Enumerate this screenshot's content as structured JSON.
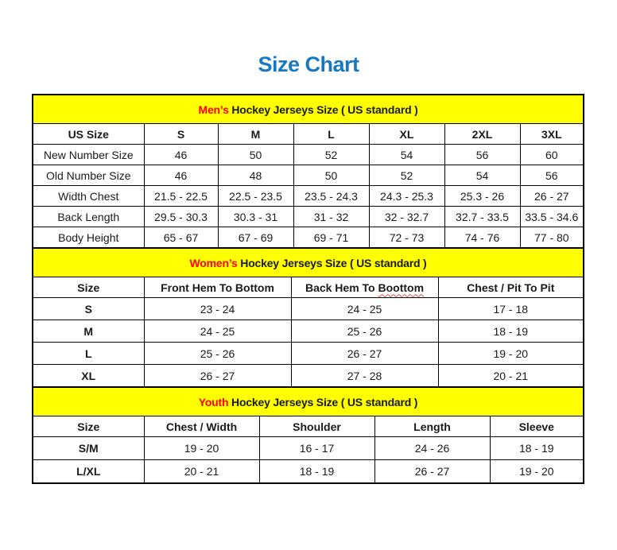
{
  "page": {
    "title": "Size Chart"
  },
  "colors": {
    "title_blue": "#1778c4",
    "section_header_bg": "#ffff00",
    "section_accent_red": "#ff0000",
    "border_black": "#000000"
  },
  "tables": [
    {
      "id": "mens",
      "section_title": {
        "highlight": "Men’s",
        "rest": " Hockey Jerseys Size ( US standard )"
      },
      "columns": [
        "US Size",
        "S",
        "M",
        "L",
        "XL",
        "2XL",
        "3XL"
      ],
      "rows": [
        [
          "New Number Size",
          "46",
          "50",
          "52",
          "54",
          "56",
          "60"
        ],
        [
          "Old Number Size",
          "46",
          "48",
          "50",
          "52",
          "54",
          "56"
        ],
        [
          "Width Chest",
          "21.5 - 22.5",
          "22.5 - 23.5",
          "23.5 - 24.3",
          "24.3 - 25.3",
          "25.3 - 26",
          "26 - 27"
        ],
        [
          "Back Length",
          "29.5 - 30.3",
          "30.3 - 31",
          "31 - 32",
          "32 - 32.7",
          "32.7 - 33.5",
          "33.5 - 34.6"
        ],
        [
          "Body Height",
          "65 - 67",
          "67 - 69",
          "69 - 71",
          "72 - 73",
          "74 - 76",
          "77 - 80"
        ]
      ]
    },
    {
      "id": "womens",
      "section_title": {
        "highlight": "Women’s",
        "rest": " Hockey Jerseys Size ( US standard )"
      },
      "columns": [
        "Size",
        "Front Hem To Bottom",
        "Back Hem To Boottom",
        "Chest / Pit To Pit"
      ],
      "misspell": {
        "col": 2,
        "word": "Boottom"
      },
      "rows": [
        [
          "S",
          "23 - 24",
          "24 - 25",
          "17 - 18"
        ],
        [
          "M",
          "24 - 25",
          "25 - 26",
          "18 - 19"
        ],
        [
          "L",
          "25 - 26",
          "26 - 27",
          "19 - 20"
        ],
        [
          "XL",
          "26 - 27",
          "27 - 28",
          "20 - 21"
        ]
      ]
    },
    {
      "id": "youth",
      "section_title": {
        "highlight": "Youth",
        "rest": " Hockey Jerseys Size ( US standard )"
      },
      "columns": [
        "Size",
        "Chest / Width",
        "Shoulder",
        "Length",
        "Sleeve"
      ],
      "rows": [
        [
          "S/M",
          "19 - 20",
          "16 - 17",
          "24 - 26",
          "18 - 19"
        ],
        [
          "L/XL",
          "20 - 21",
          "18 - 19",
          "26 - 27",
          "19 - 20"
        ]
      ]
    }
  ]
}
